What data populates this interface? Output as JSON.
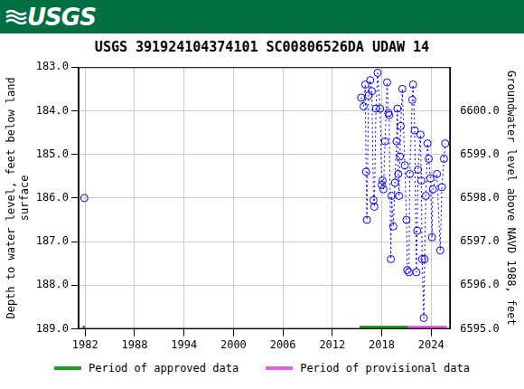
{
  "header": {
    "text": "USGS"
  },
  "chart_data": {
    "type": "scatter",
    "title": "USGS 391924104374101 SC00806526DA UDAW 14",
    "y_label": [
      "Depth to water level, feet below land",
      "surface"
    ],
    "y2_label": "Groundwater level above NAVD 1988, feet",
    "x": [
      1981.9,
      null,
      2015.5,
      2015.8,
      2016.0,
      2016.1,
      2016.2,
      2016.4,
      2016.6,
      2016.8,
      2017.0,
      2017.1,
      2017.3,
      2017.5,
      2017.8,
      2018.0,
      2018.1,
      2018.2,
      2018.4,
      2018.65,
      2018.8,
      2018.9,
      2019.1,
      2019.2,
      2019.4,
      2019.6,
      2019.8,
      2019.9,
      2020.0,
      2020.1,
      2020.2,
      2020.3,
      2020.5,
      2020.8,
      2021.0,
      2021.1,
      2021.3,
      2021.4,
      2021.7,
      2021.8,
      2022.0,
      2022.2,
      2022.3,
      2022.4,
      2022.7,
      2022.8,
      2022.9,
      2023.1,
      2023.2,
      2023.35,
      2023.55,
      2023.7,
      2023.9,
      2024.1,
      2024.2,
      2024.7,
      2025.1,
      2025.3,
      2025.55,
      2025.7
    ],
    "values": [
      186.0,
      null,
      183.7,
      183.9,
      183.4,
      185.4,
      186.5,
      183.65,
      183.3,
      183.55,
      186.05,
      186.2,
      183.95,
      183.13,
      183.95,
      185.7,
      185.6,
      185.8,
      184.7,
      183.35,
      184.05,
      184.1,
      187.4,
      185.95,
      186.65,
      185.65,
      184.7,
      183.95,
      185.45,
      185.95,
      185.05,
      184.35,
      183.5,
      185.25,
      186.5,
      187.65,
      187.7,
      185.45,
      183.75,
      183.4,
      184.45,
      187.7,
      186.75,
      185.35,
      184.55,
      185.6,
      187.4,
      188.75,
      187.4,
      185.95,
      184.75,
      185.1,
      185.55,
      186.9,
      185.8,
      185.45,
      187.2,
      185.75,
      185.1,
      184.75
    ],
    "color": "#0000ff",
    "marker": "circle",
    "line_style": "dotted",
    "periods": [
      {
        "name": "Period of approved data",
        "color": "#1f9e1f",
        "ranges": [
          [
            1981.7,
            1982.0
          ],
          [
            2015.3,
            2021.2
          ]
        ]
      },
      {
        "name": "Period of provisional data",
        "color": "#e35fe3",
        "ranges": [
          [
            2021.2,
            2025.9
          ]
        ]
      }
    ],
    "xlim": [
      1981.2,
      2026.3
    ],
    "xticks": [
      1982,
      1988,
      1994,
      2000,
      2006,
      2012,
      2018,
      2024
    ],
    "ylim": [
      189,
      183
    ],
    "yticks": [
      {
        "value": 183,
        "label": "183.0"
      },
      {
        "value": 184,
        "label": "184.0"
      },
      {
        "value": 185,
        "label": "185.0"
      },
      {
        "value": 186,
        "label": "186.0"
      },
      {
        "value": 187,
        "label": "187.0"
      },
      {
        "value": 188,
        "label": "188.0"
      },
      {
        "value": 189,
        "label": "189.0"
      }
    ],
    "y2lim": [
      6595,
      6601
    ],
    "y2ticks": [
      {
        "value": 6595,
        "label": "6595.0"
      },
      {
        "value": 6596,
        "label": "6596.0"
      },
      {
        "value": 6597,
        "label": "6597.0"
      },
      {
        "value": 6598,
        "label": "6598.0"
      },
      {
        "value": 6599,
        "label": "6599.0"
      },
      {
        "value": 6600,
        "label": "6600.0"
      }
    ],
    "grid": true,
    "legend": "bottom"
  }
}
